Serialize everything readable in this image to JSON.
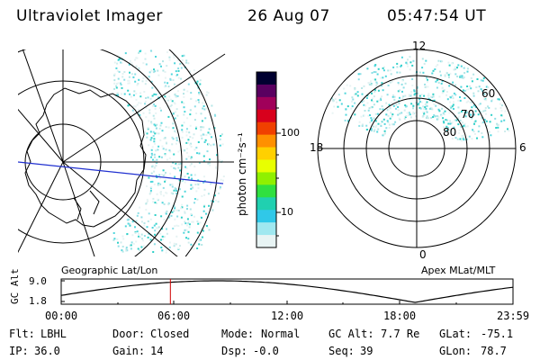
{
  "header": {
    "title": "Ultraviolet Imager",
    "date": "26 Aug 07",
    "time": "05:47:54 UT"
  },
  "colorbar": {
    "label": "photon cm⁻²s⁻¹",
    "ticks": [
      "100",
      "10"
    ],
    "colors": [
      "#000030",
      "#5a0060",
      "#a0005a",
      "#d8001c",
      "#f04000",
      "#ff9000",
      "#ffd000",
      "#e8ff00",
      "#90f000",
      "#30e040",
      "#20d0b0",
      "#30c8e8",
      "#a0e8f0",
      "#e8f4f4"
    ]
  },
  "left_panel": {
    "caption": "Geographic Lat/Lon"
  },
  "right_panel": {
    "caption": "Apex MLat/MLT",
    "mlt_labels": {
      "top": "12",
      "bottom": "0",
      "left": "18",
      "right": "6"
    },
    "lat_labels": [
      "60",
      "70",
      "80"
    ]
  },
  "altitude_plot": {
    "ylabel": "GC Alt",
    "y_ticks": [
      "9.0",
      "1.8"
    ],
    "x_ticks": [
      "00:00",
      "06:00",
      "12:00",
      "18:00",
      "23:59"
    ],
    "current_time_hours": 5.8
  },
  "status": {
    "row1": [
      {
        "key": "Flt:",
        "value": "LBHL"
      },
      {
        "key": "Door:",
        "value": "Closed"
      },
      {
        "key": "Mode:",
        "value": "Normal"
      },
      {
        "key": "GC Alt:",
        "value": "7.7 Re"
      },
      {
        "key": "GLat:",
        "value": "-75.1"
      }
    ],
    "row2": [
      {
        "key": "IP:",
        "value": "36.0"
      },
      {
        "key": "Gain:",
        "value": "14"
      },
      {
        "key": "Dsp:",
        "value": "-0.0"
      },
      {
        "key": "Seq:",
        "value": "39"
      },
      {
        "key": "GLon:",
        "value": "78.7"
      }
    ]
  }
}
